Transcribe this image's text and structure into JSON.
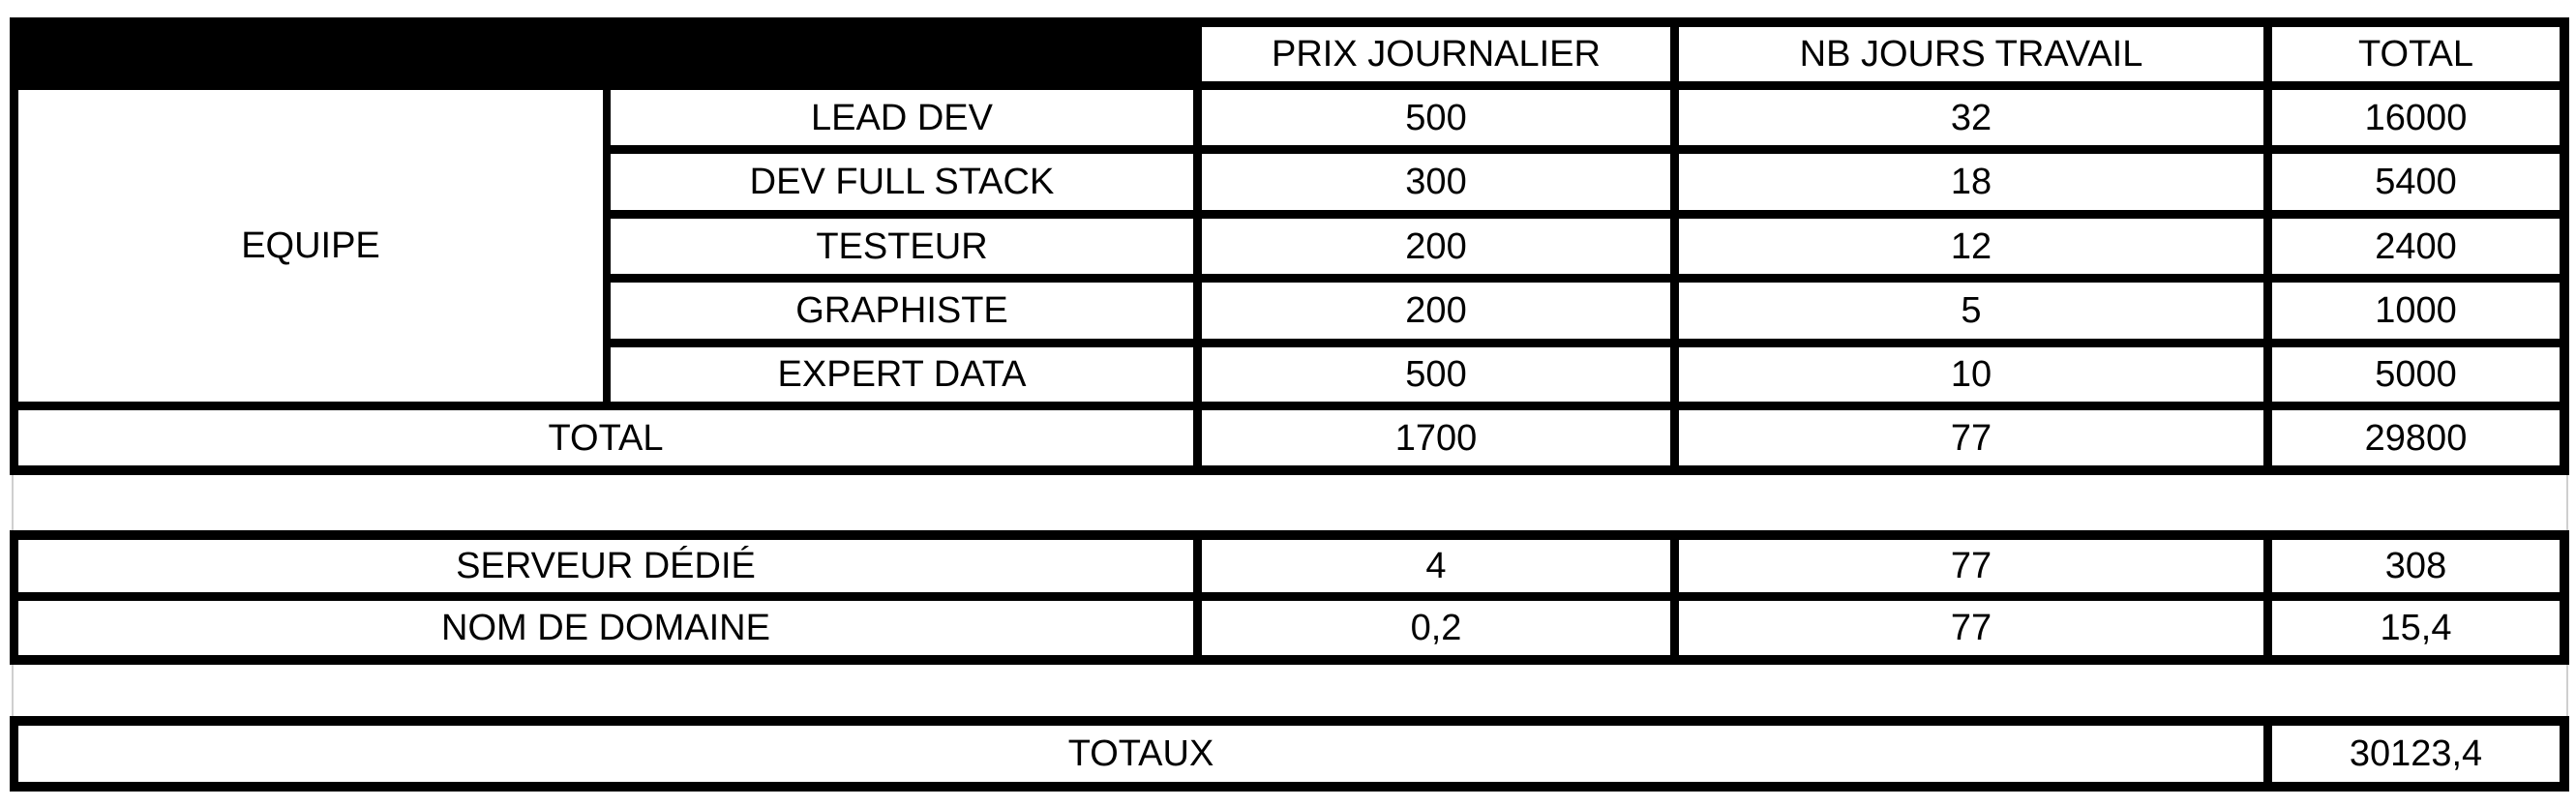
{
  "header": {
    "blank": "",
    "col_prix": "PRIX JOURNALIER",
    "col_jours": "NB JOURS TRAVAIL",
    "col_total": "TOTAL"
  },
  "team": {
    "group_label": "EQUIPE",
    "rows": [
      {
        "role": "LEAD DEV",
        "prix": "500",
        "jours": "32",
        "total": "16000"
      },
      {
        "role": "DEV FULL STACK",
        "prix": "300",
        "jours": "18",
        "total": "5400"
      },
      {
        "role": "TESTEUR",
        "prix": "200",
        "jours": "12",
        "total": "2400"
      },
      {
        "role": "GRAPHISTE",
        "prix": "200",
        "jours": "5",
        "total": "1000"
      },
      {
        "role": "EXPERT DATA",
        "prix": "500",
        "jours": "10",
        "total": "5000"
      }
    ],
    "total_row": {
      "label": "TOTAL",
      "prix": "1700",
      "jours": "77",
      "total": "29800"
    }
  },
  "infra": {
    "rows": [
      {
        "label": "SERVEUR DÉDIÉ",
        "prix": "4",
        "jours": "77",
        "total": "308"
      },
      {
        "label": "NOM DE DOMAINE",
        "prix": "0,2",
        "jours": "77",
        "total": "15,4"
      }
    ]
  },
  "totals": {
    "label": "TOTAUX",
    "value": "30123,4"
  }
}
